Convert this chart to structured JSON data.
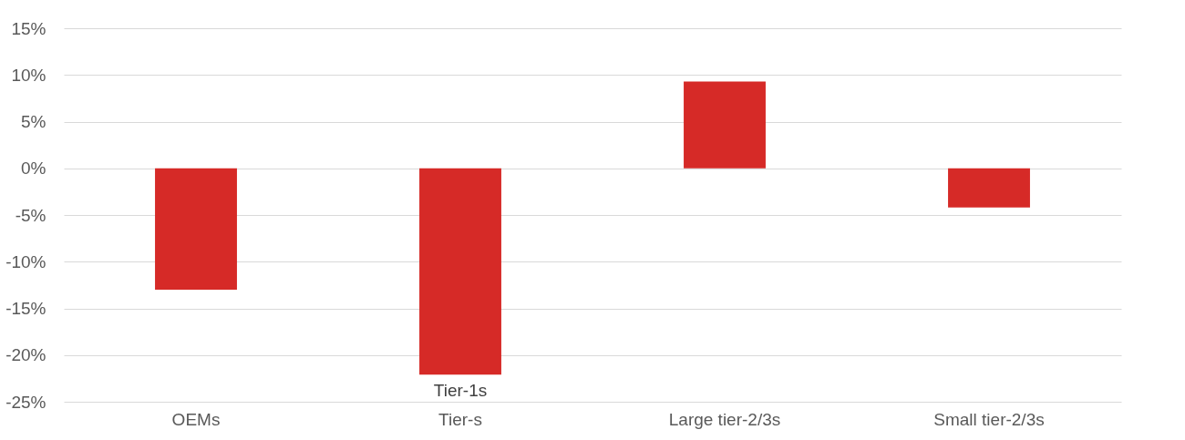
{
  "chart_data": {
    "type": "bar",
    "categories": [
      "OEMs",
      "Tier-s",
      "Large tier-2/3s",
      "Small tier-2/3s"
    ],
    "values": [
      -13,
      -22.1,
      9.3,
      -4.2
    ],
    "color": "#d62a27",
    "ylim": [
      -25,
      15
    ],
    "yticks": [
      {
        "value": -25,
        "label": "-25%"
      },
      {
        "value": -20,
        "label": "-20%"
      },
      {
        "value": -15,
        "label": "-15%"
      },
      {
        "value": -10,
        "label": "-10%"
      },
      {
        "value": -5,
        "label": "-5%"
      },
      {
        "value": 0,
        "label": "0%"
      },
      {
        "value": 5,
        "label": "5%"
      },
      {
        "value": 10,
        "label": "10%"
      },
      {
        "value": 15,
        "label": "15%"
      }
    ],
    "grid": "y",
    "annotations": [
      "Tier-1s"
    ]
  }
}
